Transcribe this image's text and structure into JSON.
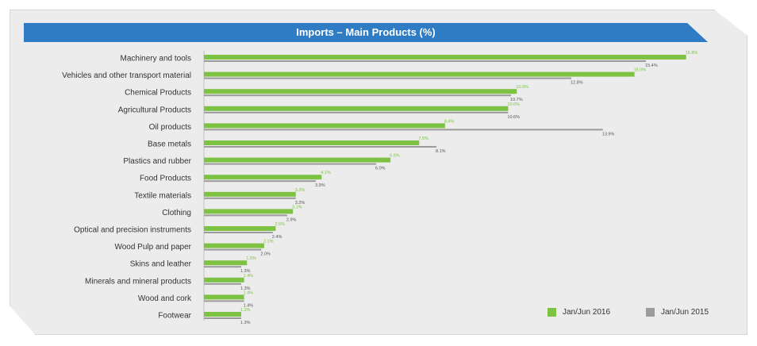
{
  "chart_data": {
    "type": "bar",
    "orientation": "horizontal",
    "title": "Imports – Main Products (%)",
    "categories": [
      "Machinery and tools",
      "Vehicles and other transport material",
      "Chemical Products",
      "Agricultural Products",
      "Oil products",
      "Base metals",
      "Plastics and rubber",
      "Food Products",
      "Textile materials",
      "Clothing",
      "Optical and precision instruments",
      "Wood Pulp and paper",
      "Skins and leather",
      "Minerals and mineral products",
      "Wood and cork",
      "Footwear"
    ],
    "series": [
      {
        "name": "Jan/Jun 2016",
        "color": "#7dc242",
        "values": [
          16.8,
          15.0,
          10.9,
          10.6,
          8.4,
          7.5,
          6.5,
          4.1,
          3.2,
          3.1,
          2.5,
          2.1,
          1.5,
          1.4,
          1.4,
          1.3
        ],
        "labels": [
          "16.8%",
          "15.0%",
          "10.9%",
          "10.6%",
          "8.4%",
          "7.5%",
          "6.5%",
          "4.1%",
          "3.2%",
          "3.1%",
          "2.5%",
          "2.1%",
          "1.5%",
          "1.4%",
          "1.4%",
          "1.3%"
        ]
      },
      {
        "name": "Jan/Jun 2015",
        "color": "#9b9b9b",
        "values": [
          15.4,
          12.8,
          10.7,
          10.6,
          13.9,
          8.1,
          6.0,
          3.9,
          3.2,
          2.9,
          2.4,
          2.0,
          1.3,
          1.3,
          1.4,
          1.3
        ],
        "labels": [
          "15.4%",
          "12.8%",
          "10.7%",
          "10.6%",
          "13.9%",
          "8.1%",
          "6.0%",
          "3.9%",
          "3.2%",
          "2.9%",
          "2.4%",
          "2.0%",
          "1.3%",
          "1.3%",
          "1.4%",
          "1.3%"
        ]
      }
    ],
    "xlim": [
      0,
      17.5
    ],
    "grid": false,
    "legend_position": "bottom-right"
  }
}
